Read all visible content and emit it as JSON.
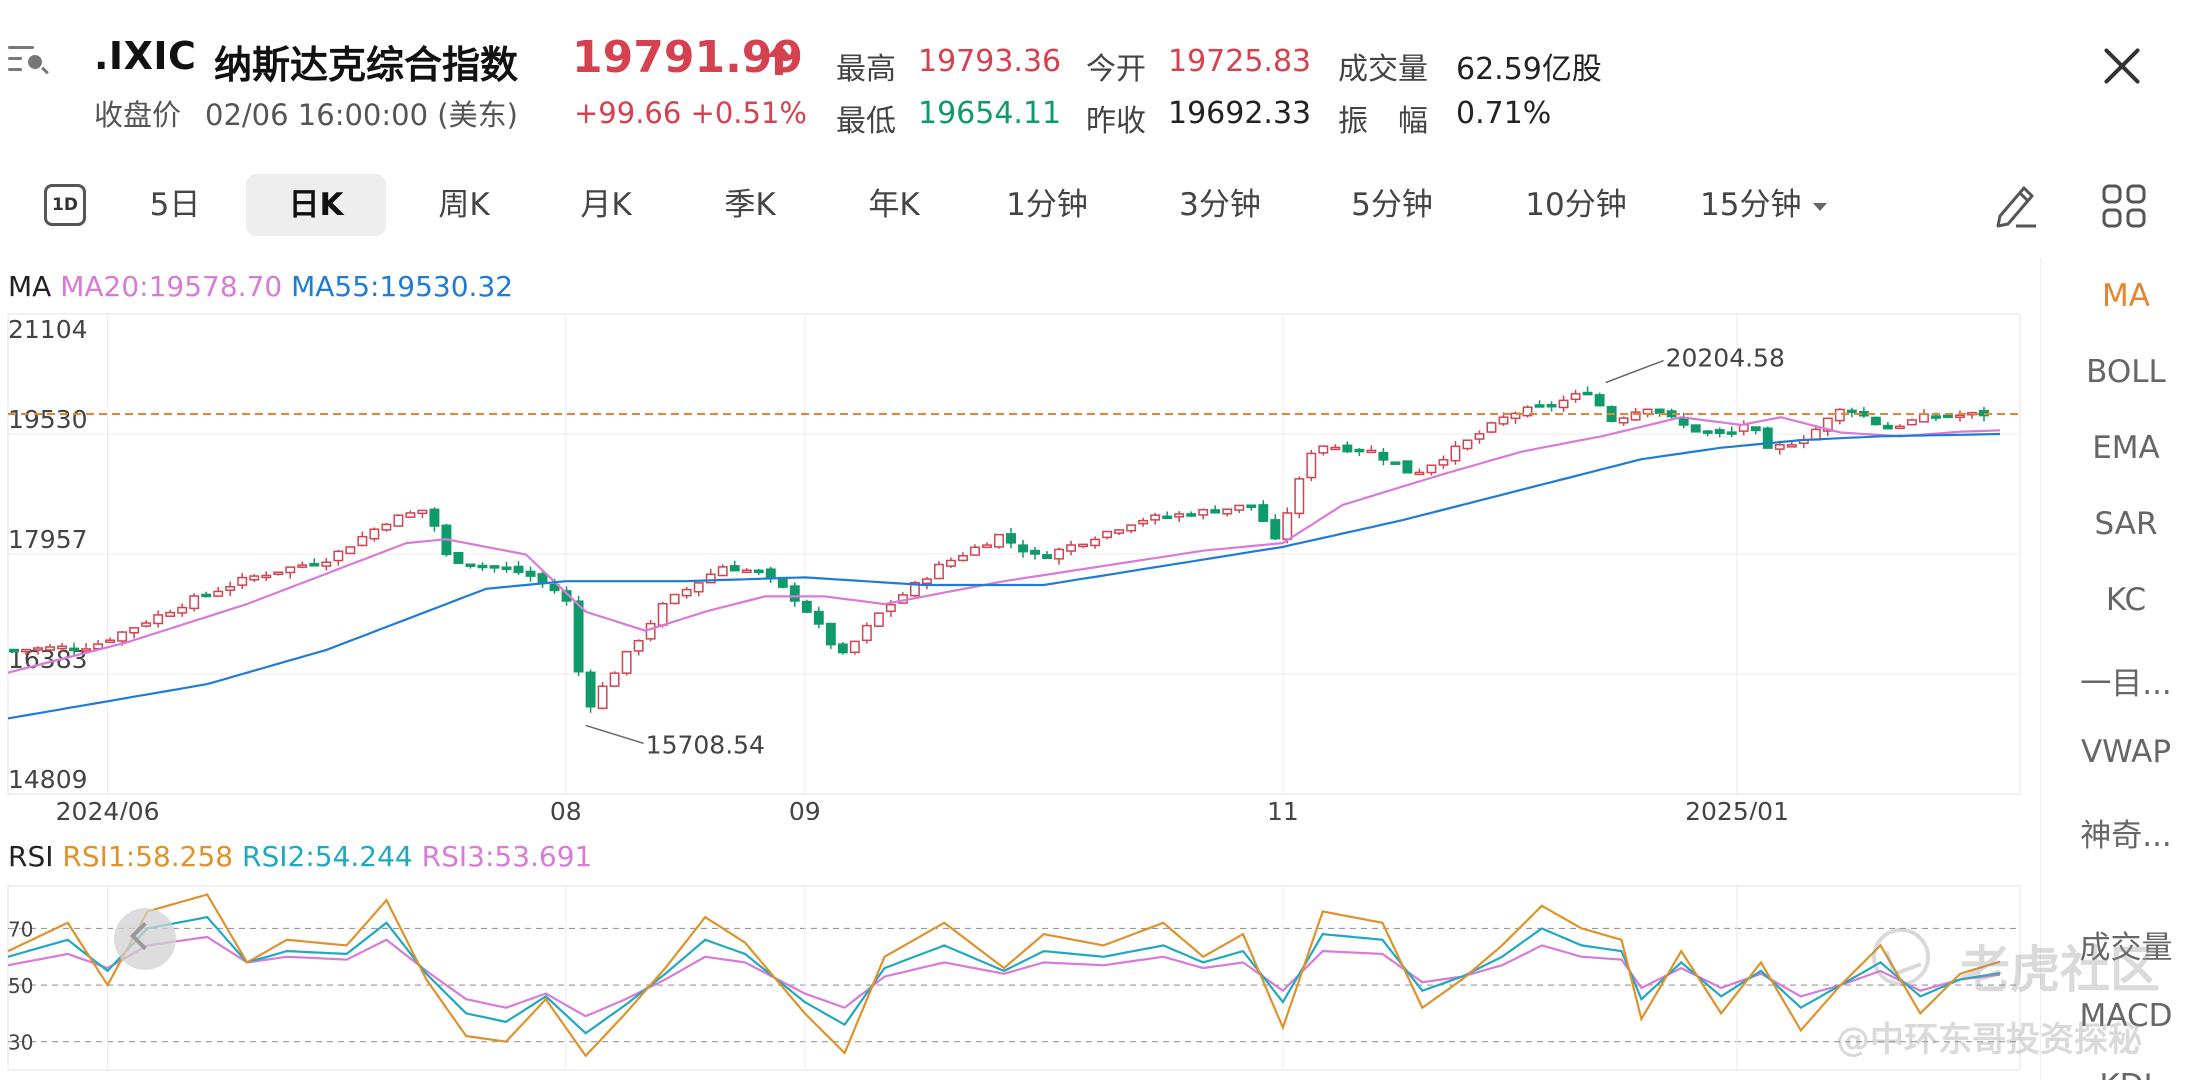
{
  "header": {
    "symbol": ".IXIC",
    "name": "纳斯达克综合指数",
    "price": "19791.99",
    "change": "+99.66  +0.51%",
    "close_label": "收盘价",
    "close_time": "02/06 16:00:00 (美东)",
    "quote": {
      "high_label": "最高",
      "high": "19793.36",
      "open_label": "今开",
      "open": "19725.83",
      "volume_label": "成交量",
      "volume": "62.59亿股",
      "low_label": "最低",
      "low": "19654.11",
      "prev_close_label": "昨收",
      "prev_close": "19692.33",
      "amplitude_label": "振　幅",
      "amplitude": "0.71%"
    }
  },
  "tabs": {
    "one_day_icon": "1D",
    "items": [
      "5日",
      "日K",
      "周K",
      "月K",
      "季K",
      "年K",
      "1分钟",
      "3分钟",
      "5分钟",
      "10分钟",
      "15分钟"
    ],
    "active": "日K"
  },
  "side_panel": [
    "MA",
    "BOLL",
    "EMA",
    "SAR",
    "KC",
    "一目...",
    "VWAP",
    "神奇...",
    "成交量",
    "MACD",
    "KDJ"
  ],
  "ma_legend": {
    "title": "MA",
    "ma20": "MA20:19578.70",
    "ma55": "MA55:19530.32",
    "ma20_color": "#d87ad8",
    "ma55_color": "#1f7bd8"
  },
  "rsi_legend": {
    "title": "RSI",
    "rsi1": "RSI1:58.258",
    "rsi2": "RSI2:54.244",
    "rsi3": "RSI3:53.691",
    "rsi1_color": "#e0922a",
    "rsi2_color": "#1fa8c0",
    "rsi3_color": "#d87ad8"
  },
  "watermark": {
    "brand": "老虎社区",
    "user": "@中环东哥投资探秘"
  },
  "colors": {
    "up": "#d5414f",
    "down": "#0f9a6a",
    "ref_line": "#e8842c"
  },
  "chart_data": {
    "type": "candlestick",
    "y_ticks": [
      "21104",
      "19530",
      "17957",
      "16383",
      "14809"
    ],
    "ylim": [
      14809,
      21104
    ],
    "x_ticks": [
      {
        "label": "2024/06",
        "pos": 0.05
      },
      {
        "label": "08",
        "pos": 0.28
      },
      {
        "label": "09",
        "pos": 0.4
      },
      {
        "label": "11",
        "pos": 0.64
      },
      {
        "label": "2025/01",
        "pos": 0.868
      }
    ],
    "last_price": 19791.99,
    "annotations": [
      {
        "label": "20204.58",
        "value": 20204.58,
        "pos": 0.802
      },
      {
        "label": "15708.54",
        "value": 15708.54,
        "pos": 0.29
      }
    ],
    "close_anchors": [
      [
        0,
        16700
      ],
      [
        0.04,
        16750
      ],
      [
        0.09,
        17350
      ],
      [
        0.12,
        17650
      ],
      [
        0.16,
        17900
      ],
      [
        0.19,
        18400
      ],
      [
        0.21,
        18550
      ],
      [
        0.22,
        17900
      ],
      [
        0.24,
        17800
      ],
      [
        0.26,
        17700
      ],
      [
        0.28,
        17400
      ],
      [
        0.29,
        15900
      ],
      [
        0.31,
        16600
      ],
      [
        0.33,
        17300
      ],
      [
        0.36,
        17800
      ],
      [
        0.38,
        17700
      ],
      [
        0.4,
        17300
      ],
      [
        0.42,
        16600
      ],
      [
        0.44,
        17200
      ],
      [
        0.47,
        17800
      ],
      [
        0.5,
        18200
      ],
      [
        0.52,
        17900
      ],
      [
        0.54,
        18100
      ],
      [
        0.57,
        18400
      ],
      [
        0.6,
        18500
      ],
      [
        0.63,
        18600
      ],
      [
        0.64,
        18100
      ],
      [
        0.66,
        19400
      ],
      [
        0.69,
        19300
      ],
      [
        0.71,
        19000
      ],
      [
        0.73,
        19300
      ],
      [
        0.76,
        19800
      ],
      [
        0.78,
        19900
      ],
      [
        0.8,
        20100
      ],
      [
        0.81,
        19700
      ],
      [
        0.83,
        19900
      ],
      [
        0.85,
        19600
      ],
      [
        0.87,
        19500
      ],
      [
        0.88,
        19700
      ],
      [
        0.89,
        19300
      ],
      [
        0.91,
        19500
      ],
      [
        0.93,
        19900
      ],
      [
        0.95,
        19600
      ],
      [
        0.97,
        19750
      ],
      [
        1.0,
        19791.99
      ]
    ],
    "ma20_anchors": [
      [
        0,
        16400
      ],
      [
        0.06,
        16800
      ],
      [
        0.12,
        17300
      ],
      [
        0.16,
        17700
      ],
      [
        0.2,
        18100
      ],
      [
        0.22,
        18150
      ],
      [
        0.26,
        17950
      ],
      [
        0.29,
        17200
      ],
      [
        0.32,
        16950
      ],
      [
        0.35,
        17200
      ],
      [
        0.38,
        17400
      ],
      [
        0.41,
        17400
      ],
      [
        0.44,
        17300
      ],
      [
        0.47,
        17450
      ],
      [
        0.5,
        17600
      ],
      [
        0.55,
        17800
      ],
      [
        0.6,
        18000
      ],
      [
        0.64,
        18100
      ],
      [
        0.67,
        18600
      ],
      [
        0.72,
        19000
      ],
      [
        0.76,
        19300
      ],
      [
        0.8,
        19500
      ],
      [
        0.84,
        19750
      ],
      [
        0.87,
        19650
      ],
      [
        0.89,
        19750
      ],
      [
        0.92,
        19550
      ],
      [
        0.95,
        19500
      ],
      [
        0.98,
        19560
      ],
      [
        1.0,
        19578.7
      ]
    ],
    "ma55_anchors": [
      [
        0,
        15800
      ],
      [
        0.1,
        16250
      ],
      [
        0.16,
        16700
      ],
      [
        0.2,
        17100
      ],
      [
        0.24,
        17500
      ],
      [
        0.28,
        17600
      ],
      [
        0.34,
        17600
      ],
      [
        0.4,
        17650
      ],
      [
        0.46,
        17550
      ],
      [
        0.52,
        17550
      ],
      [
        0.58,
        17800
      ],
      [
        0.64,
        18050
      ],
      [
        0.7,
        18400
      ],
      [
        0.76,
        18800
      ],
      [
        0.82,
        19200
      ],
      [
        0.86,
        19350
      ],
      [
        0.9,
        19450
      ],
      [
        0.94,
        19500
      ],
      [
        1.0,
        19530.32
      ]
    ],
    "rsi": {
      "y_ticks": [
        "70",
        "50",
        "30"
      ],
      "ylim": [
        20,
        85
      ],
      "rsi1_anchors": [
        [
          0,
          62
        ],
        [
          0.03,
          72
        ],
        [
          0.05,
          50
        ],
        [
          0.07,
          76
        ],
        [
          0.1,
          82
        ],
        [
          0.12,
          58
        ],
        [
          0.14,
          66
        ],
        [
          0.17,
          64
        ],
        [
          0.19,
          80
        ],
        [
          0.21,
          52
        ],
        [
          0.23,
          32
        ],
        [
          0.25,
          30
        ],
        [
          0.27,
          45
        ],
        [
          0.29,
          25
        ],
        [
          0.31,
          40
        ],
        [
          0.33,
          56
        ],
        [
          0.35,
          74
        ],
        [
          0.37,
          65
        ],
        [
          0.4,
          40
        ],
        [
          0.42,
          26
        ],
        [
          0.44,
          60
        ],
        [
          0.47,
          72
        ],
        [
          0.5,
          56
        ],
        [
          0.52,
          68
        ],
        [
          0.55,
          64
        ],
        [
          0.58,
          72
        ],
        [
          0.6,
          60
        ],
        [
          0.62,
          68
        ],
        [
          0.64,
          35
        ],
        [
          0.66,
          76
        ],
        [
          0.69,
          72
        ],
        [
          0.71,
          42
        ],
        [
          0.73,
          52
        ],
        [
          0.75,
          64
        ],
        [
          0.77,
          78
        ],
        [
          0.79,
          70
        ],
        [
          0.81,
          66
        ],
        [
          0.82,
          38
        ],
        [
          0.84,
          62
        ],
        [
          0.86,
          40
        ],
        [
          0.88,
          58
        ],
        [
          0.9,
          34
        ],
        [
          0.92,
          50
        ],
        [
          0.94,
          64
        ],
        [
          0.96,
          40
        ],
        [
          0.98,
          54
        ],
        [
          1.0,
          58.258
        ]
      ],
      "rsi2_anchors": [
        [
          0,
          60
        ],
        [
          0.03,
          66
        ],
        [
          0.05,
          55
        ],
        [
          0.07,
          70
        ],
        [
          0.1,
          74
        ],
        [
          0.12,
          58
        ],
        [
          0.14,
          62
        ],
        [
          0.17,
          61
        ],
        [
          0.19,
          72
        ],
        [
          0.21,
          54
        ],
        [
          0.23,
          40
        ],
        [
          0.25,
          37
        ],
        [
          0.27,
          46
        ],
        [
          0.29,
          33
        ],
        [
          0.31,
          43
        ],
        [
          0.33,
          54
        ],
        [
          0.35,
          66
        ],
        [
          0.37,
          61
        ],
        [
          0.4,
          44
        ],
        [
          0.42,
          36
        ],
        [
          0.44,
          56
        ],
        [
          0.47,
          64
        ],
        [
          0.5,
          55
        ],
        [
          0.52,
          62
        ],
        [
          0.55,
          60
        ],
        [
          0.58,
          64
        ],
        [
          0.6,
          58
        ],
        [
          0.62,
          62
        ],
        [
          0.64,
          44
        ],
        [
          0.66,
          68
        ],
        [
          0.69,
          66
        ],
        [
          0.71,
          48
        ],
        [
          0.73,
          53
        ],
        [
          0.75,
          60
        ],
        [
          0.77,
          70
        ],
        [
          0.79,
          64
        ],
        [
          0.81,
          62
        ],
        [
          0.82,
          45
        ],
        [
          0.84,
          58
        ],
        [
          0.86,
          46
        ],
        [
          0.88,
          55
        ],
        [
          0.9,
          42
        ],
        [
          0.92,
          50
        ],
        [
          0.94,
          58
        ],
        [
          0.96,
          46
        ],
        [
          0.98,
          52
        ],
        [
          1.0,
          54.244
        ]
      ],
      "rsi3_anchors": [
        [
          0,
          57
        ],
        [
          0.03,
          61
        ],
        [
          0.05,
          56
        ],
        [
          0.07,
          64
        ],
        [
          0.1,
          67
        ],
        [
          0.12,
          58
        ],
        [
          0.14,
          60
        ],
        [
          0.17,
          59
        ],
        [
          0.19,
          66
        ],
        [
          0.21,
          55
        ],
        [
          0.23,
          45
        ],
        [
          0.25,
          42
        ],
        [
          0.27,
          47
        ],
        [
          0.29,
          39
        ],
        [
          0.31,
          45
        ],
        [
          0.33,
          52
        ],
        [
          0.35,
          60
        ],
        [
          0.37,
          58
        ],
        [
          0.4,
          47
        ],
        [
          0.42,
          42
        ],
        [
          0.44,
          53
        ],
        [
          0.47,
          58
        ],
        [
          0.5,
          54
        ],
        [
          0.52,
          58
        ],
        [
          0.55,
          57
        ],
        [
          0.58,
          60
        ],
        [
          0.6,
          56
        ],
        [
          0.62,
          58
        ],
        [
          0.64,
          48
        ],
        [
          0.66,
          62
        ],
        [
          0.69,
          61
        ],
        [
          0.71,
          51
        ],
        [
          0.73,
          53
        ],
        [
          0.75,
          57
        ],
        [
          0.77,
          64
        ],
        [
          0.79,
          60
        ],
        [
          0.81,
          59
        ],
        [
          0.82,
          49
        ],
        [
          0.84,
          56
        ],
        [
          0.86,
          49
        ],
        [
          0.88,
          54
        ],
        [
          0.9,
          46
        ],
        [
          0.92,
          50
        ],
        [
          0.94,
          55
        ],
        [
          0.96,
          48
        ],
        [
          0.98,
          52
        ],
        [
          1.0,
          53.691
        ]
      ]
    }
  }
}
